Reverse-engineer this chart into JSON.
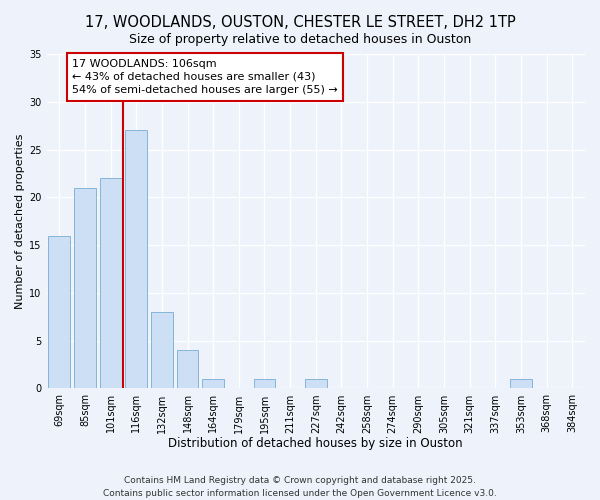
{
  "title": "17, WOODLANDS, OUSTON, CHESTER LE STREET, DH2 1TP",
  "subtitle": "Size of property relative to detached houses in Ouston",
  "xlabel": "Distribution of detached houses by size in Ouston",
  "ylabel": "Number of detached properties",
  "categories": [
    "69sqm",
    "85sqm",
    "101sqm",
    "116sqm",
    "132sqm",
    "148sqm",
    "164sqm",
    "179sqm",
    "195sqm",
    "211sqm",
    "227sqm",
    "242sqm",
    "258sqm",
    "274sqm",
    "290sqm",
    "305sqm",
    "321sqm",
    "337sqm",
    "353sqm",
    "368sqm",
    "384sqm"
  ],
  "values": [
    16,
    21,
    22,
    27,
    8,
    4,
    1,
    0,
    1,
    0,
    1,
    0,
    0,
    0,
    0,
    0,
    0,
    0,
    1,
    0,
    0
  ],
  "bar_color": "#ccdff5",
  "bar_edge_color": "#85b5d9",
  "property_line_x": 2.5,
  "annotation_line1": "17 WOODLANDS: 106sqm",
  "annotation_line2": "← 43% of detached houses are smaller (43)",
  "annotation_line3": "54% of semi-detached houses are larger (55) →",
  "annotation_box_color": "#ffffff",
  "annotation_box_edge": "#cc0000",
  "property_line_color": "#cc0000",
  "ylim": [
    0,
    35
  ],
  "yticks": [
    0,
    5,
    10,
    15,
    20,
    25,
    30,
    35
  ],
  "background_color": "#eef3fb",
  "footer_line1": "Contains HM Land Registry data © Crown copyright and database right 2025.",
  "footer_line2": "Contains public sector information licensed under the Open Government Licence v3.0.",
  "title_fontsize": 10.5,
  "subtitle_fontsize": 9,
  "xlabel_fontsize": 8.5,
  "ylabel_fontsize": 8,
  "tick_fontsize": 7,
  "annotation_fontsize": 8,
  "footer_fontsize": 6.5
}
